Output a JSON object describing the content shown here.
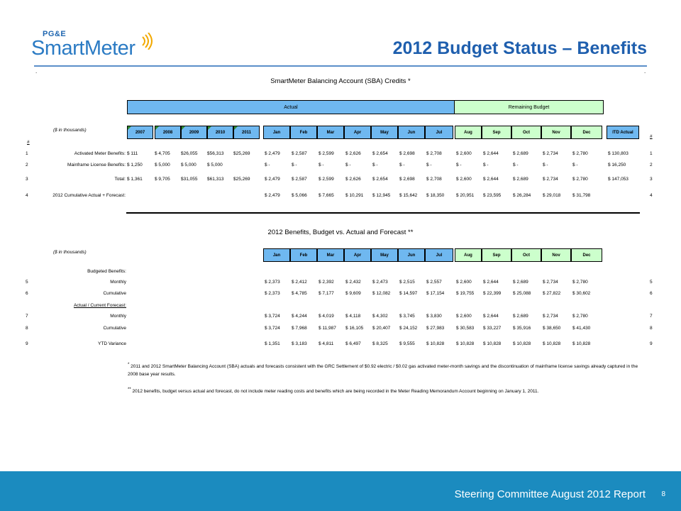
{
  "logo": {
    "top": "PG&E",
    "main": "SmartMeter"
  },
  "title": "2012 Budget Status – Benefits",
  "table1": {
    "title": "SmartMeter Balancing Account (SBA) Credits *",
    "band_actual": "Actual",
    "band_remaining": "Remaining Budget",
    "units": "($ in thousands)",
    "hash": "#",
    "years": [
      "2007",
      "2008",
      "2009",
      "2010",
      "2011"
    ],
    "months": [
      "Jan",
      "Feb",
      "Mar",
      "Apr",
      "May",
      "Jun",
      "Jul",
      "Aug",
      "Sep",
      "Oct",
      "Nov",
      "Dec"
    ],
    "itd": "ITD Actual",
    "rows": [
      {
        "num": "1",
        "label": "Activated Meter Benefits:",
        "years": [
          "$      111",
          "$  4,705",
          "$26,055",
          "$56,313",
          "$25,269"
        ],
        "months": [
          "$  2,479",
          "$  2,587",
          "$  2,599",
          "$  2,626",
          "$  2,654",
          "$  2,698",
          "$  2,708",
          "$  2,600",
          "$   2,644",
          "$    2,689",
          "$  2,734",
          "$      2,780"
        ],
        "itd": "$  130,803"
      },
      {
        "num": "2",
        "label": "Mainframe License Benefits:",
        "years": [
          "$  1,250",
          "$  5,000",
          "$  5,000",
          "$  5,000",
          ""
        ],
        "months": [
          "$     -",
          "$     -",
          "$     -",
          "$     -",
          "$     -",
          "$     -",
          "$     -",
          "$     -",
          "$      -",
          "$      -",
          "$      -",
          "$        -"
        ],
        "itd": "$    16,250"
      },
      {
        "num": "3",
        "label": "Total:",
        "years": [
          "$  1,361",
          "$  9,705",
          "$31,055",
          "$61,313",
          "$25,269"
        ],
        "months": [
          "$  2,479",
          "$  2,587",
          "$  2,599",
          "$  2,626",
          "$  2,654",
          "$  2,698",
          "$  2,708",
          "$  2,600",
          "$   2,644",
          "$    2,689",
          "$  2,734",
          "$      2,780"
        ],
        "itd": "$  147,053"
      },
      {
        "num": "4",
        "label": "2012 Cumulative Actual + Forecast:",
        "years": [
          "",
          "",
          "",
          "",
          ""
        ],
        "months": [
          "$  2,479",
          "$  5,066",
          "$  7,665",
          "$ 10,291",
          "$ 12,945",
          "$ 15,642",
          "$ 18,350",
          "$ 20,951",
          "$  23,595",
          "$  26,284",
          "$  29,018",
          "$  31,798"
        ],
        "itd": ""
      }
    ]
  },
  "table2": {
    "title": "2012 Benefits, Budget vs. Actual and Forecast **",
    "units": "($ in thousands)",
    "months": [
      "Jan",
      "Feb",
      "Mar",
      "Apr",
      "May",
      "Jun",
      "Jul",
      "Aug",
      "Sep",
      "Oct",
      "Nov",
      "Dec"
    ],
    "group1": "Budgeted Benefits:",
    "group2": "Actual / Current Forecast:",
    "rows": [
      {
        "num": "5",
        "label": "Monthly",
        "months": [
          "$  2,373",
          "$  2,412",
          "$  2,392",
          "$  2,432",
          "$  2,473",
          "$  2,515",
          "$  2,557",
          "$  2,600",
          "$   2,644",
          "$    2,689",
          "$  2,734",
          "$      2,780"
        ]
      },
      {
        "num": "6",
        "label": "Cumulative",
        "months": [
          "$  2,373",
          "$  4,785",
          "$  7,177",
          "$  9,609",
          "$ 12,082",
          "$ 14,597",
          "$ 17,154",
          "$ 19,755",
          "$  22,399",
          "$  25,088",
          "$  27,822",
          "$  30,602"
        ]
      },
      {
        "num": "7",
        "label": "Monthly",
        "months": [
          "$  3,724",
          "$  4,244",
          "$  4,019",
          "$  4,118",
          "$  4,302",
          "$  3,745",
          "$  3,830",
          "$  2,600",
          "$   2,644",
          "$    2,689",
          "$  2,734",
          "$      2,780"
        ]
      },
      {
        "num": "8",
        "label": "Cumulative",
        "months": [
          "$  3,724",
          "$  7,968",
          "$ 11,987",
          "$ 16,105",
          "$ 20,407",
          "$ 24,152",
          "$ 27,983",
          "$ 30,583",
          "$  33,227",
          "$  35,916",
          "$  38,650",
          "$  41,430"
        ]
      },
      {
        "num": "9",
        "label": "YTD Variance",
        "months": [
          "$  1,351",
          "$  3,183",
          "$  4,811",
          "$  6,497",
          "$  8,325",
          "$  9,555",
          "$ 10,828",
          "$ 10,828",
          "$  10,828",
          "$  10,828",
          "$  10,828",
          "$  10,828"
        ]
      }
    ]
  },
  "notes": {
    "n1_mark": "*",
    "n1": "2011 and 2012 SmartMeter Balancing Account (SBA) actuals and forecasts consistent with the GRC Settlement of $0.92 electric / $0.02 gas activated meter-month savings and the discontinuation of mainframe license savings already captured in the 2008 base year results.",
    "n2_mark": "**",
    "n2": "2012 benefits, budget versus actual and forecast, do not include meter reading costs and benefits which are being recorded in the Meter Reading Memorandum Account beginning on January 1, 2011."
  },
  "footer": {
    "text": "Steering Committee August 2012 Report",
    "page": "8"
  },
  "colors": {
    "title": "#1f5fae",
    "actual_band": "#6fb8f0",
    "remaining_band": "#ccffcc",
    "footer": "#1b8bbf"
  }
}
